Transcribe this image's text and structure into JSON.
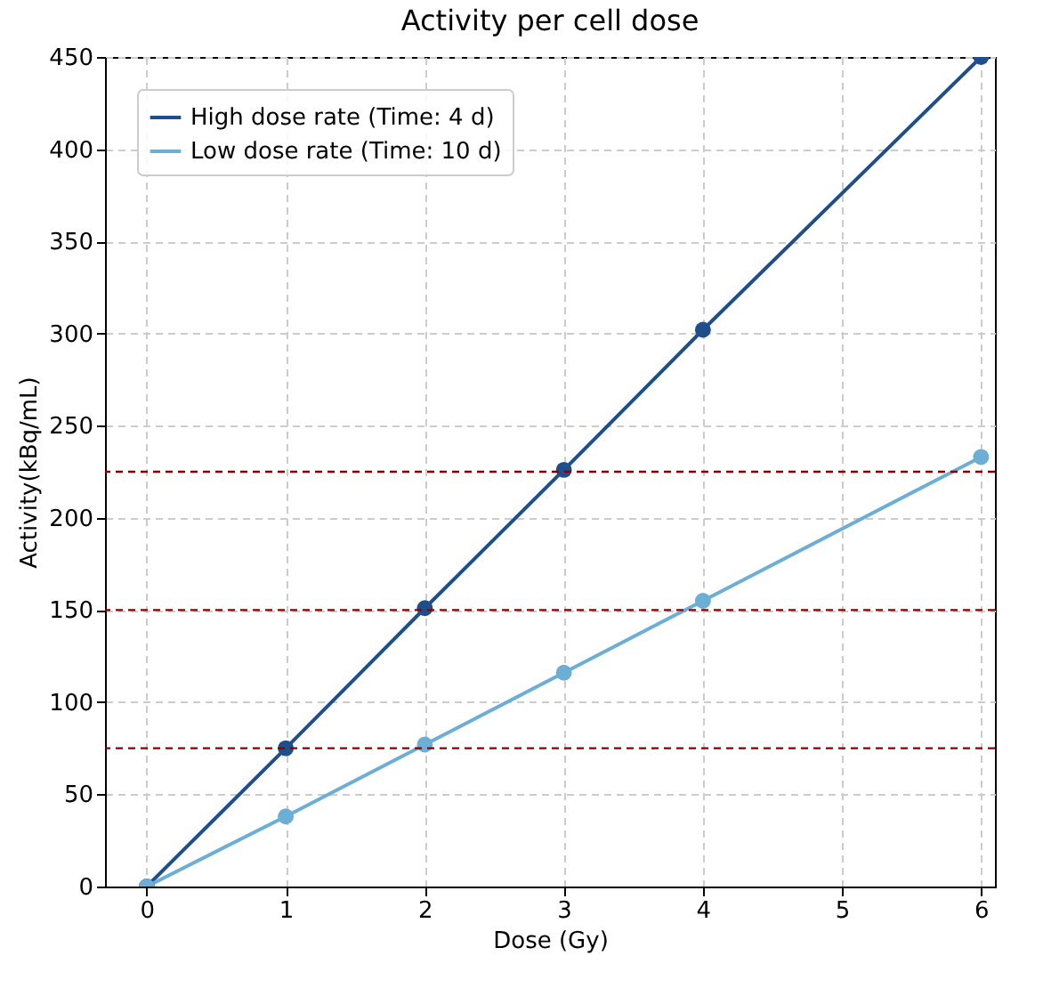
{
  "chart_data": {
    "type": "line",
    "title": "Activity per cell dose",
    "xlabel": "Dose (Gy)",
    "ylabel": "Activity(kBq/mL)",
    "x": [
      0,
      1,
      2,
      3,
      4,
      6
    ],
    "series": [
      {
        "name": "High dose rate (Time: 4 d)",
        "color": "#1f4e8c",
        "values": [
          0,
          75,
          151,
          226,
          302,
          450
        ]
      },
      {
        "name": "Low dose rate (Time: 10 d)",
        "color": "#6baed6",
        "values": [
          0,
          38,
          77,
          116,
          155,
          233
        ]
      }
    ],
    "xlim": [
      -0.3,
      6.1
    ],
    "xticks": [
      0,
      1,
      2,
      3,
      4,
      5,
      6
    ],
    "ylim": [
      0,
      450
    ],
    "yticks": [
      0,
      50,
      100,
      150,
      200,
      250,
      300,
      350,
      400,
      450
    ],
    "ref_lines": [
      {
        "axis": "y",
        "value": 75,
        "color": "#8b0000",
        "line_style": "dashed"
      },
      {
        "axis": "y",
        "value": 150,
        "color": "#8b0000",
        "line_style": "dashed"
      },
      {
        "axis": "y",
        "value": 225,
        "color": "#8b0000",
        "line_style": "dashed"
      }
    ],
    "grid": true,
    "legend": "top left",
    "marker": "circle",
    "line_style": "solid"
  }
}
